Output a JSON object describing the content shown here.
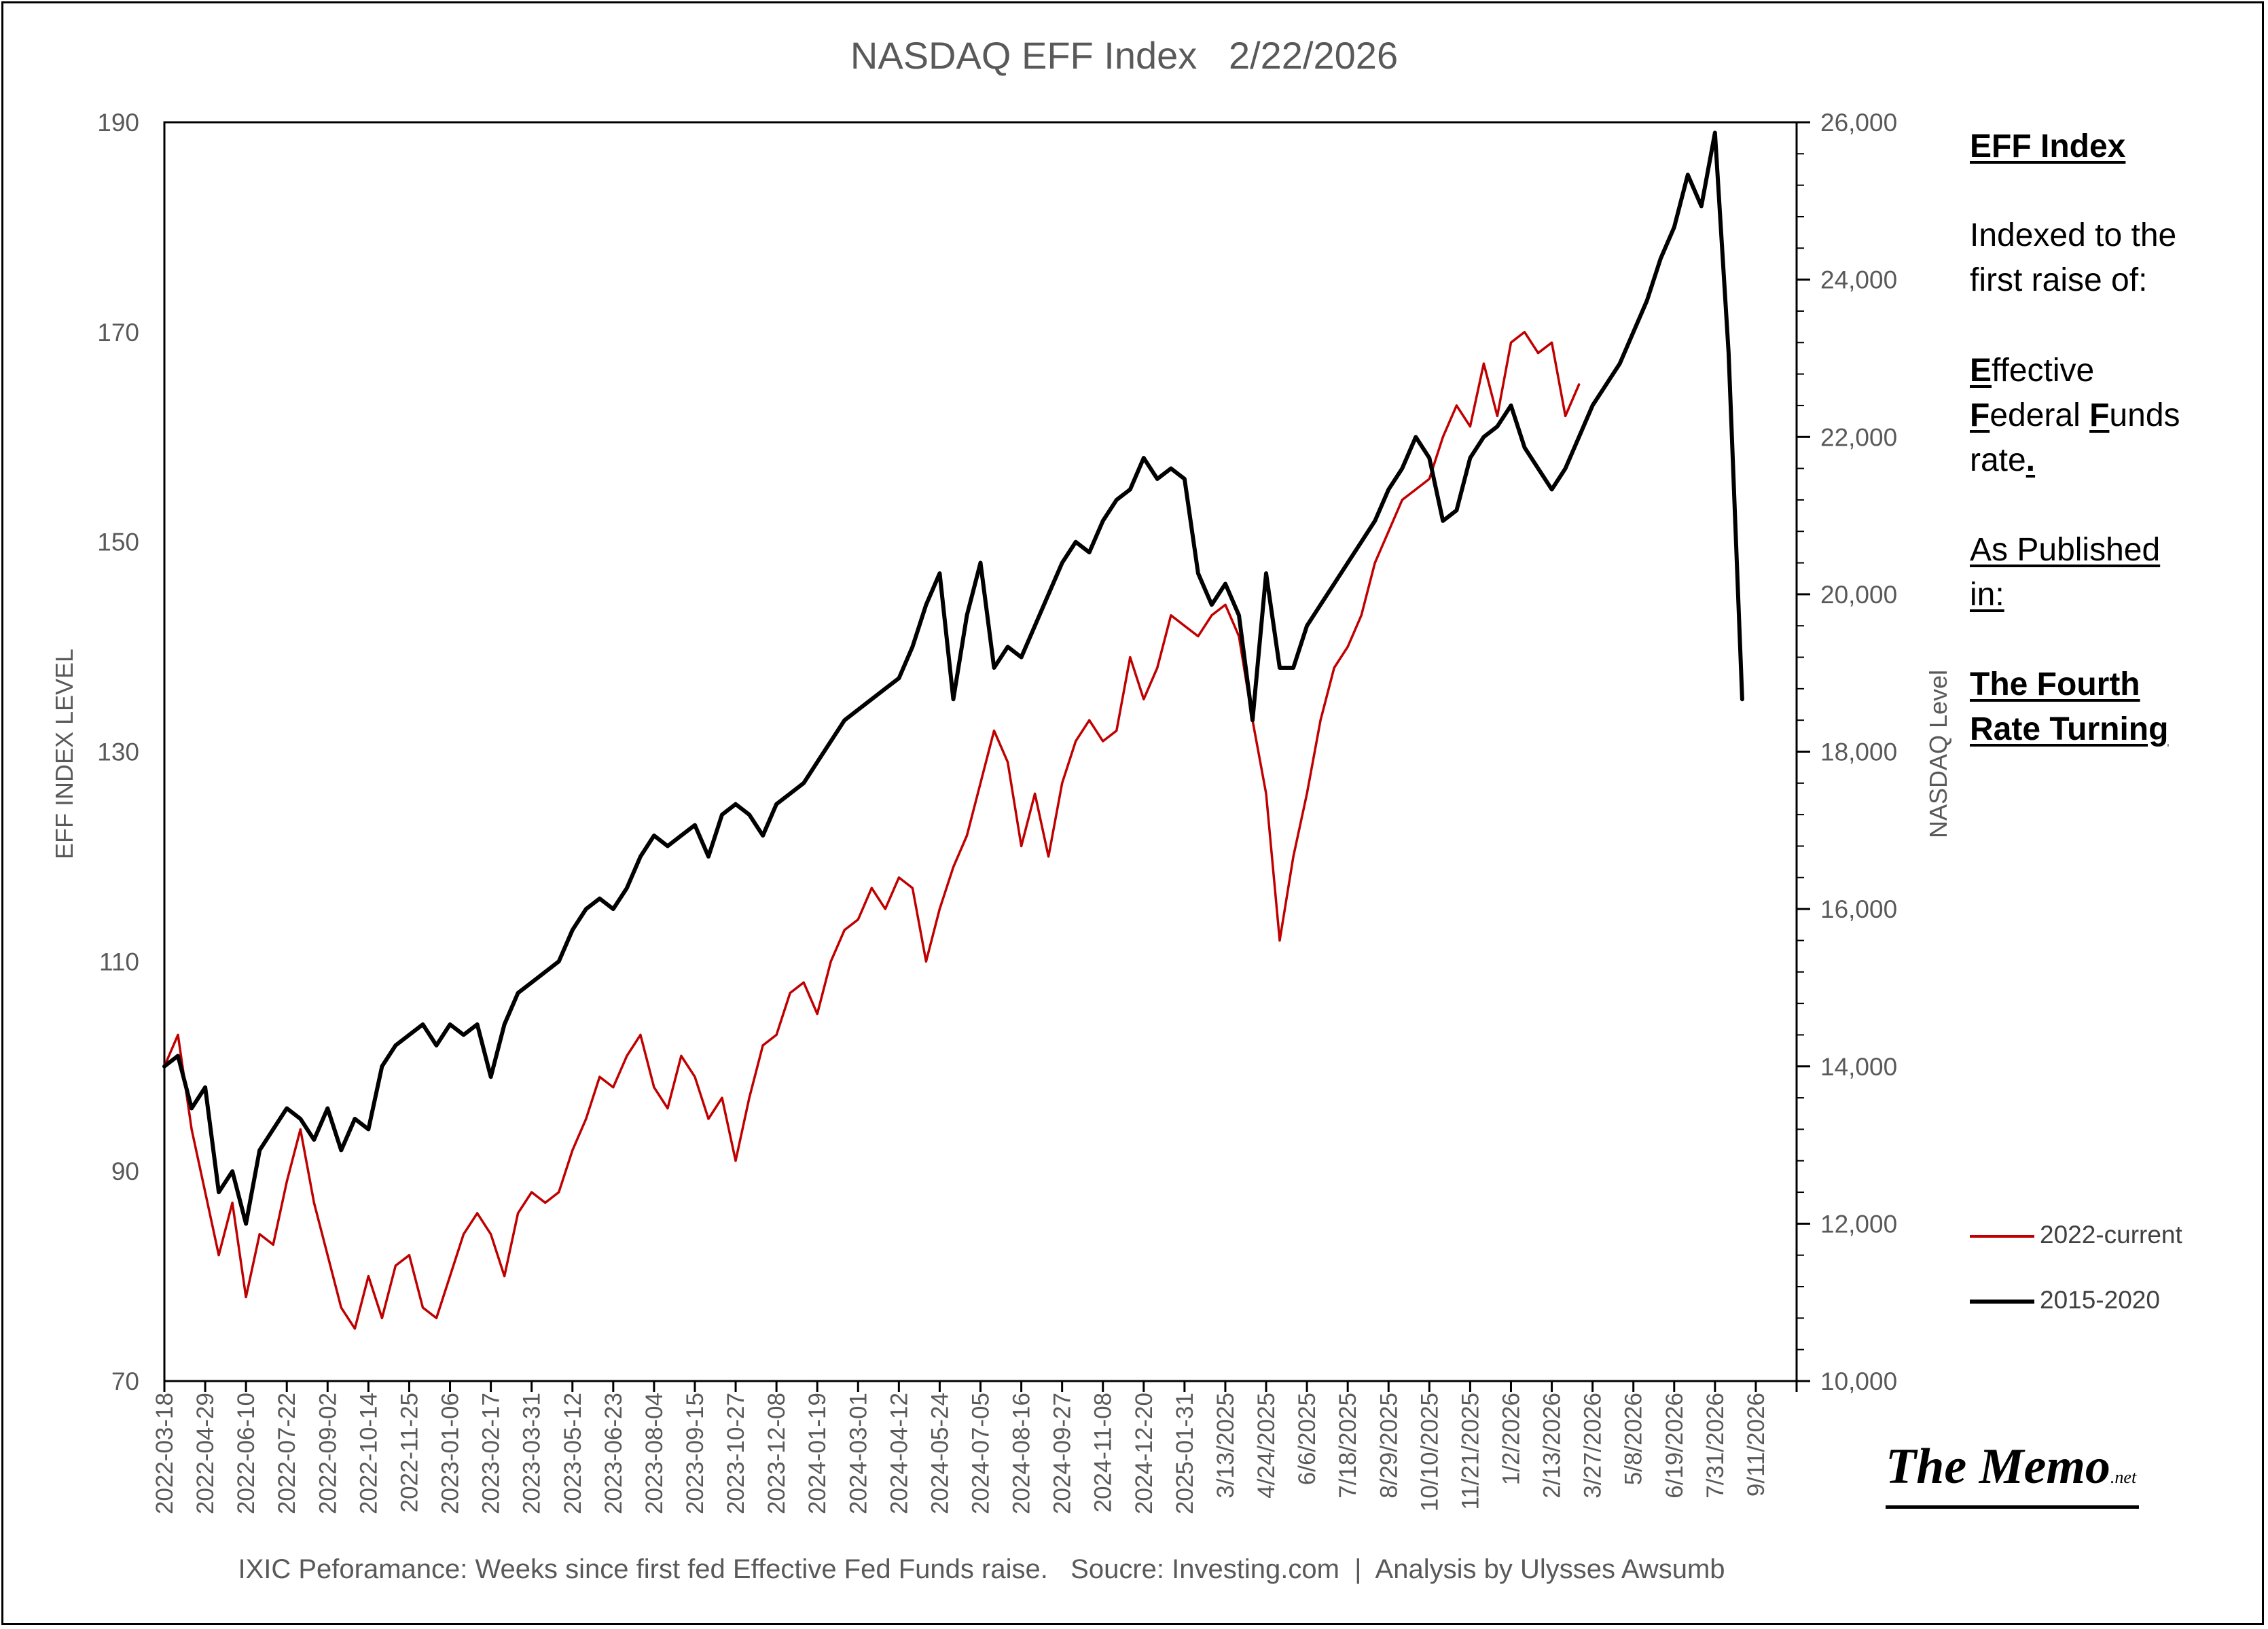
{
  "colors": {
    "series_2022": "#c00000",
    "series_2015": "#000000",
    "axis_text": "#595959"
  },
  "sidebar": {
    "heading": "EFF Index",
    "line1": "Indexed to the",
    "line2": "first raise of:",
    "e_letter": "E",
    "e_rest": "ffective",
    "f1_letter": "F",
    "f1_rest": "ederal ",
    "f2_letter": "F",
    "f2_rest": "unds",
    "rate": "rate",
    "rate_dot": ".",
    "pub1": "As Published",
    "pub2": "in:",
    "book1": "The Fourth",
    "book2": "Rate Turning"
  },
  "brand": {
    "main": "The Memo",
    "suffix": ".net"
  },
  "chart_data": {
    "type": "line",
    "title": "NASDAQ EFF Index   2/22/2026",
    "ylabel": "EFF INDEX LEVEL",
    "y2label": "NASDAQ Level",
    "footnote": "IXIC Peforamance: Weeks since first fed Effective Fed Funds raise.   Soucre: Investing.com  |  Analysis by Ulysses Awsumb",
    "ylim": [
      70,
      190
    ],
    "y2lim": [
      10000,
      26000
    ],
    "yticks": [
      "190",
      "170",
      "150",
      "130",
      "110",
      "90",
      "70"
    ],
    "y2ticks": [
      "26,000",
      "24,000",
      "22,000",
      "20,000",
      "18,000",
      "16,000",
      "14,000",
      "12,000",
      "10,000"
    ],
    "x_weeks": 240,
    "xticks": [
      "2022-03-18",
      "2022-04-29",
      "2022-06-10",
      "2022-07-22",
      "2022-09-02",
      "2022-10-14",
      "2022-11-25",
      "2023-01-06",
      "2023-02-17",
      "2023-03-31",
      "2023-05-12",
      "2023-06-23",
      "2023-08-04",
      "2023-09-15",
      "2023-10-27",
      "2023-12-08",
      "2024-01-19",
      "2024-03-01",
      "2024-04-12",
      "2024-05-24",
      "2024-07-05",
      "2024-08-16",
      "2024-09-27",
      "2024-11-08",
      "2024-12-20",
      "2025-01-31",
      "3/13/2025",
      "4/24/2025",
      "6/6/2025",
      "7/18/2025",
      "8/29/2025",
      "10/10/2025",
      "11/21/2025",
      "1/2/2026",
      "2/13/2026",
      "3/27/2026",
      "5/8/2026",
      "6/19/2026",
      "7/31/2026",
      "9/11/2026"
    ],
    "legend": [
      {
        "name": "2022-current",
        "color": "#c00000"
      },
      {
        "name": "2015-2020",
        "color": "#000000"
      }
    ],
    "legend_position": "right",
    "series": [
      {
        "name": "2022-current",
        "color": "#c00000",
        "x": [
          0,
          2,
          4,
          6,
          8,
          10,
          12,
          14,
          16,
          18,
          20,
          22,
          24,
          26,
          28,
          30,
          32,
          34,
          36,
          38,
          40,
          42,
          44,
          46,
          48,
          50,
          52,
          54,
          56,
          58,
          60,
          62,
          64,
          66,
          68,
          70,
          72,
          74,
          76,
          78,
          80,
          82,
          84,
          86,
          88,
          90,
          92,
          94,
          96,
          98,
          100,
          102,
          104,
          106,
          108,
          110,
          112,
          114,
          116,
          118,
          120,
          122,
          124,
          126,
          128,
          130,
          132,
          134,
          136,
          138,
          140,
          142,
          144,
          146,
          148,
          150,
          152,
          154,
          156,
          158,
          160,
          162,
          164,
          166,
          168,
          170,
          172,
          174,
          176,
          178,
          180,
          182,
          184,
          186,
          188,
          190,
          192,
          194,
          196,
          198,
          200,
          202,
          204,
          206,
          208
        ],
        "values": [
          100,
          103,
          94,
          88,
          82,
          87,
          78,
          84,
          83,
          89,
          94,
          87,
          82,
          77,
          75,
          80,
          76,
          81,
          82,
          77,
          76,
          80,
          84,
          86,
          84,
          80,
          86,
          88,
          87,
          88,
          92,
          95,
          99,
          98,
          101,
          103,
          98,
          96,
          101,
          99,
          95,
          97,
          91,
          97,
          102,
          103,
          107,
          108,
          105,
          110,
          113,
          114,
          117,
          115,
          118,
          117,
          110,
          115,
          119,
          122,
          127,
          132,
          129,
          121,
          126,
          120,
          127,
          131,
          133,
          131,
          132,
          139,
          135,
          138,
          143,
          142,
          141,
          143,
          144,
          141,
          133,
          126,
          112,
          120,
          126,
          133,
          138,
          140,
          143,
          148,
          151,
          154,
          155,
          156,
          160,
          163,
          161,
          167,
          162,
          169,
          170,
          168,
          169,
          162,
          165
        ]
      },
      {
        "name": "2015-2020",
        "color": "#000000",
        "x": [
          0,
          2,
          4,
          6,
          8,
          10,
          12,
          14,
          16,
          18,
          20,
          22,
          24,
          26,
          28,
          30,
          32,
          34,
          36,
          38,
          40,
          42,
          44,
          46,
          48,
          50,
          52,
          54,
          56,
          58,
          60,
          62,
          64,
          66,
          68,
          70,
          72,
          74,
          76,
          78,
          80,
          82,
          84,
          86,
          88,
          90,
          92,
          94,
          96,
          98,
          100,
          102,
          104,
          106,
          108,
          110,
          112,
          114,
          116,
          118,
          120,
          122,
          124,
          126,
          128,
          130,
          132,
          134,
          136,
          138,
          140,
          142,
          144,
          146,
          148,
          150,
          152,
          154,
          156,
          158,
          160,
          162,
          164,
          166,
          168,
          170,
          172,
          174,
          176,
          178,
          180,
          182,
          184,
          186,
          188,
          190,
          192,
          194,
          196,
          198,
          200,
          202,
          204,
          206,
          208,
          210,
          212,
          214,
          216,
          218,
          220,
          222,
          224,
          226,
          228,
          230,
          232
        ],
        "values": [
          100,
          101,
          96,
          98,
          88,
          90,
          85,
          92,
          94,
          96,
          95,
          93,
          96,
          92,
          95,
          94,
          100,
          102,
          103,
          104,
          102,
          104,
          103,
          104,
          99,
          104,
          107,
          108,
          109,
          110,
          113,
          115,
          116,
          115,
          117,
          120,
          122,
          121,
          122,
          123,
          120,
          124,
          125,
          124,
          122,
          125,
          126,
          127,
          129,
          131,
          133,
          134,
          135,
          136,
          137,
          140,
          144,
          147,
          135,
          143,
          148,
          138,
          140,
          139,
          142,
          145,
          148,
          150,
          149,
          152,
          154,
          155,
          158,
          156,
          157,
          156,
          147,
          144,
          146,
          143,
          133,
          147,
          138,
          138,
          142,
          144,
          146,
          148,
          150,
          152,
          155,
          157,
          160,
          158,
          152,
          153,
          158,
          160,
          161,
          163,
          159,
          157,
          155,
          157,
          160,
          163,
          165,
          167,
          170,
          173,
          177,
          180,
          185,
          182,
          189,
          168,
          135
        ]
      }
    ]
  }
}
